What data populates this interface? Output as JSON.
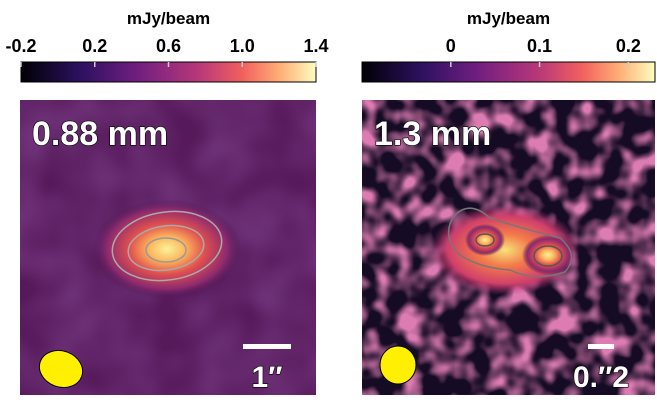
{
  "chart_data": [
    {
      "type": "heatmap",
      "colorbar_label": "mJy/beam",
      "clim": [
        -0.2,
        1.4
      ],
      "cticks": [
        -0.2,
        0.2,
        0.6,
        {
          "value": 1,
          "label": "1.0"
        },
        1.4
      ],
      "annotation": "0.88 mm",
      "scale_bar": "1″"
    },
    {
      "type": "heatmap",
      "colorbar_label": "mJy/beam",
      "clim": [
        -0.1,
        0.23
      ],
      "cticks": [
        0,
        0.1,
        0.2
      ],
      "annotation": "1.3 mm",
      "scale_bar": "0.″2"
    }
  ]
}
